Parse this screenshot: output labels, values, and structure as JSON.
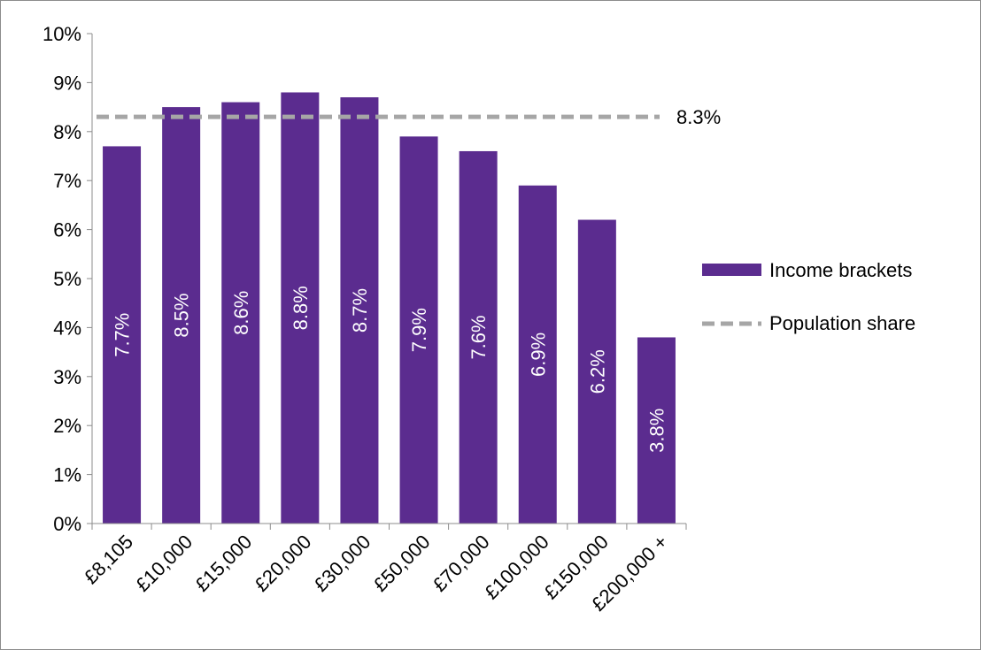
{
  "chart_data": {
    "type": "bar",
    "categories": [
      "£8,105",
      "£10,000",
      "£15,000",
      "£20,000",
      "£30,000",
      "£50,000",
      "£70,000",
      "£100,000",
      "£150,000",
      "£200,000 +"
    ],
    "series": [
      {
        "name": "Income brackets",
        "type": "bar",
        "values": [
          7.7,
          8.5,
          8.6,
          8.8,
          8.7,
          7.9,
          7.6,
          6.9,
          6.2,
          3.8
        ],
        "labels": [
          "7.7%",
          "8.5%",
          "8.6%",
          "8.8%",
          "8.7%",
          "7.9%",
          "7.6%",
          "6.9%",
          "6.2%",
          "3.8%"
        ],
        "color": "#5b2c8f"
      },
      {
        "name": "Population share",
        "type": "line",
        "style": "dashed",
        "value": 8.3,
        "label": "8.3%",
        "color": "#a6a6a6"
      }
    ],
    "y_ticks": [
      "0%",
      "1%",
      "2%",
      "3%",
      "4%",
      "5%",
      "6%",
      "7%",
      "8%",
      "9%",
      "10%"
    ],
    "ylim": [
      0,
      10
    ],
    "y_unit": "%",
    "grid": false,
    "legend_position": "right",
    "title": "",
    "xlabel": "",
    "ylabel": ""
  }
}
